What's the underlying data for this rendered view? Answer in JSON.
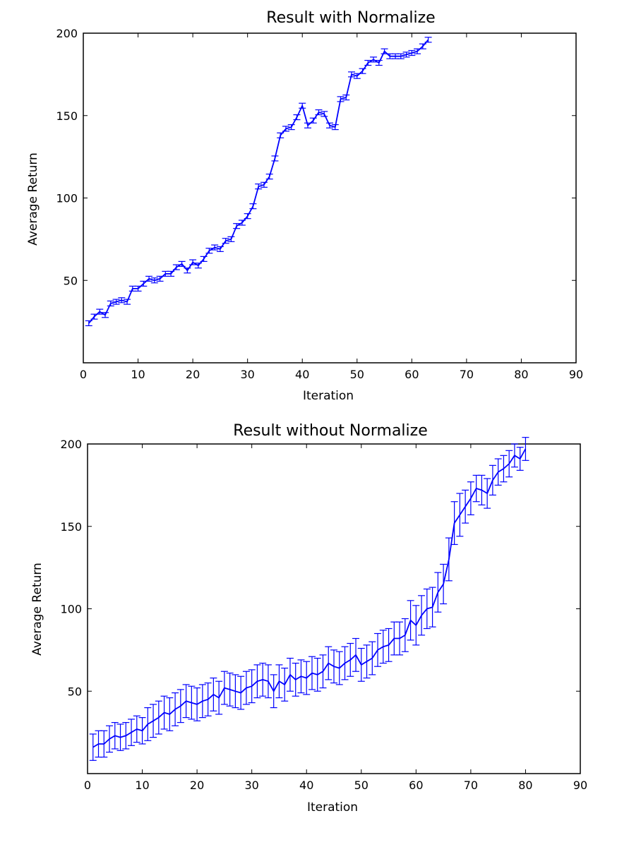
{
  "chart_data": [
    {
      "type": "line",
      "title": "Result  with  Normalize",
      "xlabel": "Iteration",
      "ylabel": "Average Return",
      "xlim": [
        0,
        90
      ],
      "ylim": [
        0,
        200
      ],
      "xticks": [
        0,
        10,
        20,
        30,
        40,
        50,
        60,
        70,
        80,
        90
      ],
      "yticks": [
        50,
        100,
        150,
        200
      ],
      "error_bars": true,
      "color": "#0000ff",
      "series": [
        {
          "x": [
            1,
            2,
            3,
            4,
            5,
            6,
            7,
            8,
            9,
            10,
            11,
            12,
            13,
            14,
            15,
            16,
            17,
            18,
            19,
            20,
            21,
            22,
            23,
            24,
            25,
            26,
            27,
            28,
            29,
            30,
            31,
            32,
            33,
            34,
            35,
            36,
            37,
            38,
            39,
            40,
            41,
            42,
            43,
            44,
            45,
            46,
            47,
            48,
            49,
            50,
            51,
            52,
            53,
            54,
            55,
            56,
            57,
            58,
            59,
            60,
            61,
            62,
            63
          ],
          "y": [
            24,
            28,
            31,
            29,
            36,
            37,
            38,
            37,
            45,
            45,
            48,
            51,
            50,
            51,
            54,
            54,
            58,
            60,
            56,
            61,
            59,
            63,
            68,
            70,
            69,
            74,
            75,
            83,
            85,
            89,
            95,
            107,
            108,
            113,
            124,
            138,
            142,
            143,
            149,
            156,
            144,
            147,
            152,
            151,
            144,
            143,
            160,
            161,
            175,
            174,
            177,
            182,
            184,
            182,
            189,
            186,
            186,
            186,
            187,
            188,
            189,
            192,
            196
          ],
          "err": [
            1.5,
            1.5,
            1.5,
            1.5,
            1.5,
            1.5,
            1.5,
            1.5,
            1.5,
            1.5,
            1.5,
            1.5,
            1.5,
            1.5,
            1.5,
            1.5,
            1.5,
            1.5,
            1.5,
            1.5,
            1.5,
            1.5,
            1.5,
            1.5,
            1.5,
            1.5,
            1.5,
            1.5,
            1.5,
            1.5,
            1.5,
            1.5,
            1.5,
            1.5,
            1.5,
            1.5,
            1.5,
            1.5,
            1.5,
            1.5,
            1.5,
            1.5,
            1.5,
            1.5,
            1.5,
            1.5,
            1.5,
            1.5,
            1.5,
            1.5,
            1.5,
            1.5,
            1.5,
            1.5,
            1.5,
            1.5,
            1.5,
            1.5,
            1.5,
            1.5,
            1.5,
            1.5,
            1.5
          ]
        }
      ]
    },
    {
      "type": "line",
      "title": "Result without Normalize",
      "xlabel": "Iteration",
      "ylabel": "Average Return",
      "xlim": [
        0,
        90
      ],
      "ylim": [
        0,
        200
      ],
      "xticks": [
        0,
        10,
        20,
        30,
        40,
        50,
        60,
        70,
        80,
        90
      ],
      "yticks": [
        50,
        100,
        150,
        200
      ],
      "error_bars": true,
      "color": "#0000ff",
      "series": [
        {
          "x": [
            1,
            2,
            3,
            4,
            5,
            6,
            7,
            8,
            9,
            10,
            11,
            12,
            13,
            14,
            15,
            16,
            17,
            18,
            19,
            20,
            21,
            22,
            23,
            24,
            25,
            26,
            27,
            28,
            29,
            30,
            31,
            32,
            33,
            34,
            35,
            36,
            37,
            38,
            39,
            40,
            41,
            42,
            43,
            44,
            45,
            46,
            47,
            48,
            49,
            50,
            51,
            52,
            53,
            54,
            55,
            56,
            57,
            58,
            59,
            60,
            61,
            62,
            63,
            64,
            65,
            66,
            67,
            68,
            69,
            70,
            71,
            72,
            73,
            74,
            75,
            76,
            77,
            78,
            79,
            80
          ],
          "y": [
            16,
            18,
            18,
            21,
            23,
            22,
            23,
            25,
            27,
            26,
            30,
            32,
            34,
            37,
            36,
            39,
            41,
            44,
            43,
            42,
            44,
            45,
            48,
            46,
            52,
            51,
            50,
            49,
            52,
            53,
            56,
            57,
            56,
            50,
            56,
            54,
            60,
            57,
            59,
            58,
            61,
            60,
            62,
            67,
            65,
            64,
            67,
            69,
            72,
            66,
            68,
            70,
            75,
            77,
            78,
            82,
            82,
            84,
            93,
            90,
            96,
            100,
            101,
            110,
            115,
            130,
            152,
            157,
            162,
            167,
            173,
            172,
            170,
            178,
            183,
            185,
            188,
            193,
            191,
            197
          ],
          "err": [
            8,
            8,
            8,
            8,
            8,
            8,
            8,
            8,
            8,
            8,
            10,
            10,
            10,
            10,
            10,
            10,
            10,
            10,
            10,
            10,
            10,
            10,
            10,
            10,
            10,
            10,
            10,
            10,
            10,
            10,
            10,
            10,
            10,
            10,
            10,
            10,
            10,
            10,
            10,
            10,
            10,
            10,
            10,
            10,
            10,
            10,
            10,
            10,
            10,
            10,
            10,
            10,
            10,
            10,
            10,
            10,
            10,
            10,
            12,
            12,
            12,
            12,
            12,
            12,
            12,
            13,
            13,
            13,
            10,
            10,
            8,
            9,
            9,
            9,
            8,
            8,
            8,
            7,
            7,
            7
          ]
        }
      ]
    }
  ]
}
